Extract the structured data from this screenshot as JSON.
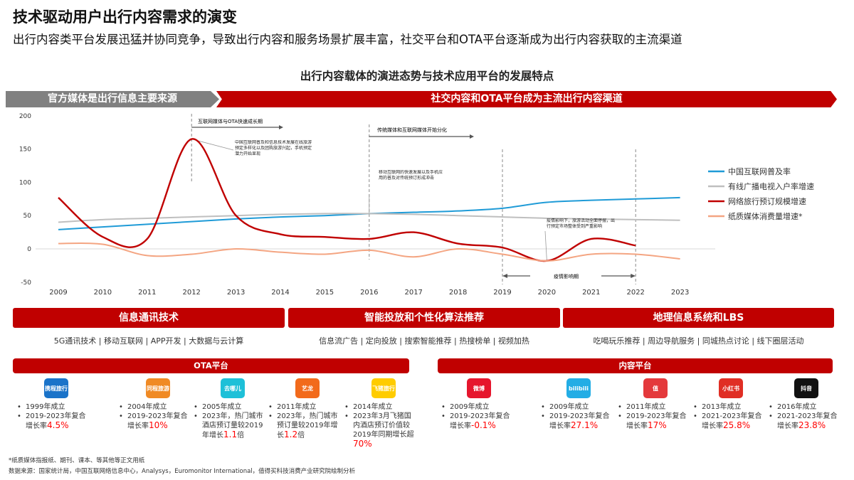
{
  "header": {
    "title": "技术驱动用户出行内容需求的演变",
    "subtitle": "出行内容类平台发展迅猛并协同竞争，导致出行内容和服务场景扩展丰富，社交平台和OTA平台逐渐成为出行内容获取的主流渠道"
  },
  "chart_title": "出行内容载体的演进态势与技术应用平台的发展特点",
  "banner": {
    "left": "官方媒体是出行信息主要来源",
    "right": "社交内容和OTA平台成为主流出行内容渠道"
  },
  "chart_data": {
    "type": "line",
    "x": [
      2009,
      2010,
      2011,
      2012,
      2013,
      2014,
      2015,
      2016,
      2017,
      2018,
      2019,
      2020,
      2021,
      2022,
      2023
    ],
    "ylim": [
      -50,
      200
    ],
    "yticks": [
      -50,
      0,
      50,
      100,
      150,
      200
    ],
    "grid": false,
    "legend": "right",
    "series": [
      {
        "name": "中国互联网普及率",
        "color": "#1f9bd7",
        "values": [
          29,
          33,
          37,
          41,
          45,
          48,
          50,
          53,
          55,
          57,
          61,
          70,
          73,
          75,
          77
        ]
      },
      {
        "name": "有线广播电视入户率增速",
        "color": "#bfbfbf",
        "values": [
          40,
          44,
          46,
          48,
          50,
          52,
          53,
          53,
          52,
          50,
          48,
          46,
          45,
          44,
          43
        ]
      },
      {
        "name": "网络旅行预订规模增速",
        "color": "#c00000",
        "values": [
          77,
          18,
          15,
          165,
          50,
          22,
          18,
          15,
          25,
          8,
          2,
          -18,
          15,
          5,
          null
        ]
      },
      {
        "name": "纸质媒体消费量增速*",
        "color": "#f4a582",
        "values": [
          8,
          7,
          -10,
          -8,
          0,
          -5,
          -8,
          -2,
          -12,
          0,
          -8,
          -18,
          -8,
          -8,
          -15
        ]
      }
    ],
    "annotations": {
      "period1": "互联网媒体与OTA快速成长期",
      "period2": "传统媒体和互联网媒体开始分化",
      "note2012": "中国互联网普及和信息技术发展在线旅游预定多样化以及团购旅游兴起，手机预定潜力开始显现",
      "note2016": "移动互联网的快速发展以及手机应用的普及对传统预订形成冲击",
      "note2020": "疫情影响下，旅游活动全面停摆，出行预定市场整体受到严重影响",
      "covid": "疫情影响期"
    }
  },
  "tech": [
    {
      "title": "信息通讯技术",
      "items": "5G通讯技术 | 移动互联网 | APP开发 | 大数据与云计算"
    },
    {
      "title": "智能投放和个性化算法推荐",
      "items": "信息流广告 | 定向投放 | 搜索智能推荐 | 热搜榜单 | 视频加热"
    },
    {
      "title": "地理信息系统和LBS",
      "items": "吃喝玩乐推荐 | 周边导航服务 | 同城热点讨论 | 线下圈层活动"
    }
  ],
  "ota": {
    "title": "OTA平台",
    "cards": [
      {
        "logo": "携程旅行",
        "color": "#1a73c9",
        "l1": "1999年成立",
        "l2": "2019-2023年复合增长率",
        "hl": "4.5%",
        "suffix": ""
      },
      {
        "logo": "同程旅游",
        "color": "#f08a24",
        "l1": "2004年成立",
        "l2": "2019-2023年复合增长率",
        "hl": "10%",
        "suffix": ""
      },
      {
        "logo": "去哪儿",
        "color": "#1ec0d8",
        "l1": "2005年成立",
        "l2": "2023年，热门城市酒店预订量较2019年增长",
        "hl": "1.1",
        "suffix": "倍"
      },
      {
        "logo": "艺龙",
        "color": "#f26a1b",
        "l1": "2011年成立",
        "l2": "2023年，热门城市预订量较2019年增长",
        "hl": "1.2",
        "suffix": "倍"
      },
      {
        "logo": "飞猪旅行",
        "color": "#ffcc00",
        "l1": "2014年成立",
        "l2": "2023年3月飞猪国内酒店预订价值较2019年同期增长超",
        "hl": "70%",
        "suffix": ""
      }
    ]
  },
  "content": {
    "title": "内容平台",
    "cards": [
      {
        "logo": "微博",
        "color": "#e6162d",
        "l1": "2009年成立",
        "l2": "2019-2023年复合增长率",
        "hl": "-0.1%",
        "suffix": ""
      },
      {
        "logo": "bilibili",
        "color": "#23ade5",
        "l1": "2009年成立",
        "l2": "2019-2023年复合增长率",
        "hl": "27.1%",
        "suffix": ""
      },
      {
        "logo": "值",
        "color": "#e4393c",
        "l1": "2011年成立",
        "l2": "2019-2023年复合增长率",
        "hl": "17%",
        "suffix": ""
      },
      {
        "logo": "小红书",
        "color": "#e02e24",
        "l1": "2013年成立",
        "l2": "2021-2023年复合增长率",
        "hl": "25.8%",
        "suffix": ""
      },
      {
        "logo": "抖音",
        "color": "#111111",
        "l1": "2016年成立",
        "l2": "2021-2023年复合增长率",
        "hl": "23.8%",
        "suffix": ""
      }
    ]
  },
  "footnotes": {
    "note": "*纸质媒体指报纸、期刊、课本、等其他等正文用纸",
    "source": "数据来源：国家统计局，中国互联网络信息中心，Analysys，Euromonitor International，值得买科技消费产业研究院绘制分析"
  }
}
